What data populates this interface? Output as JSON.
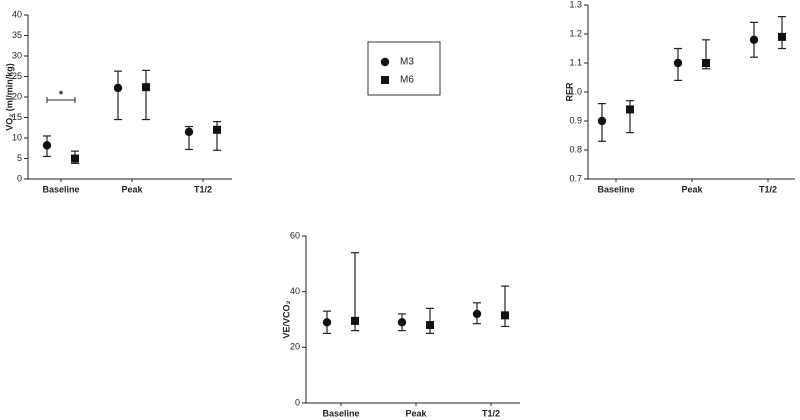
{
  "chart_data": [
    {
      "type": "errorbar",
      "ylabel": "VO₂ (ml/min/kg)",
      "categories": [
        "Baseline",
        "Peak",
        "T1/2"
      ],
      "ylim": [
        0,
        40
      ],
      "yticks": [
        0,
        5,
        10,
        15,
        20,
        25,
        30,
        35,
        40
      ],
      "annotation": "*",
      "series": [
        {
          "name": "M3",
          "marker": "circle",
          "color": "#111111",
          "values": [
            8.2,
            22.2,
            11.5
          ],
          "lower": [
            5.5,
            14.5,
            7.2
          ],
          "upper": [
            10.5,
            26.3,
            12.8
          ]
        },
        {
          "name": "M6",
          "marker": "square",
          "color": "#111111",
          "values": [
            5,
            22.4,
            12
          ],
          "lower": [
            3.8,
            14.5,
            7
          ],
          "upper": [
            6.8,
            26.5,
            14
          ]
        }
      ]
    },
    {
      "type": "errorbar",
      "ylabel": "RER",
      "categories": [
        "Baseline",
        "Peak",
        "T1/2"
      ],
      "ylim": [
        0.7,
        1.3
      ],
      "yticks": [
        0.7,
        0.8,
        0.9,
        {
          "value": 1,
          "label": "1.0"
        },
        1.1,
        1.2,
        1.3
      ],
      "series": [
        {
          "name": "M3",
          "marker": "circle",
          "color": "#111111",
          "values": [
            0.9,
            1.1,
            1.18
          ],
          "lower": [
            0.83,
            1.04,
            1.12
          ],
          "upper": [
            0.96,
            1.15,
            1.24
          ]
        },
        {
          "name": "M6",
          "marker": "square",
          "color": "#111111",
          "values": [
            0.94,
            1.1,
            1.19
          ],
          "lower": [
            0.86,
            1.08,
            1.15
          ],
          "upper": [
            0.97,
            1.18,
            1.26
          ]
        }
      ]
    },
    {
      "type": "errorbar",
      "ylabel": "VE/VCO₂",
      "categories": [
        "Baseline",
        "Peak",
        "T1/2"
      ],
      "ylim": [
        0,
        60
      ],
      "yticks": [
        0,
        20,
        40,
        60
      ],
      "series": [
        {
          "name": "M3",
          "marker": "circle",
          "color": "#111111",
          "values": [
            29,
            29,
            32
          ],
          "lower": [
            25,
            26,
            28.5
          ],
          "upper": [
            33,
            32,
            36
          ]
        },
        {
          "name": "M6",
          "marker": "square",
          "color": "#111111",
          "values": [
            29.5,
            28,
            31.5
          ],
          "lower": [
            26,
            25,
            27.5
          ],
          "upper": [
            54,
            34,
            42
          ]
        }
      ]
    }
  ]
}
